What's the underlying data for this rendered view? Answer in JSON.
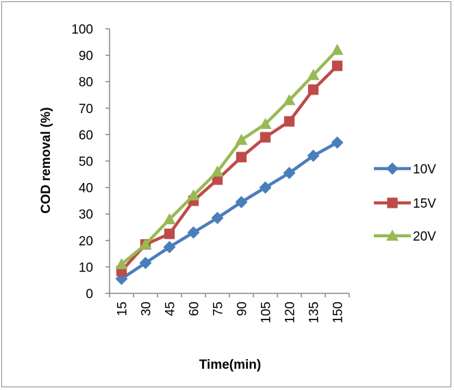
{
  "chart_data": {
    "type": "line",
    "title": "",
    "xlabel": "Time(min)",
    "ylabel": "COD removal (%)",
    "categories": [
      "15",
      "30",
      "45",
      "60",
      "75",
      "90",
      "105",
      "120",
      "135",
      "150"
    ],
    "ylim": [
      0,
      100
    ],
    "yticks": [
      "0",
      "10",
      "20",
      "30",
      "40",
      "50",
      "60",
      "70",
      "80",
      "90",
      "100"
    ],
    "grid": false,
    "legend_position": "right",
    "series": [
      {
        "name": "10V",
        "color": "#4a7ebb",
        "marker": "diamond",
        "values": [
          5.5,
          11.5,
          17.5,
          23,
          28.5,
          34.5,
          40,
          45.5,
          52,
          57
        ]
      },
      {
        "name": "15V",
        "color": "#be4b48",
        "marker": "square",
        "values": [
          8.5,
          18.5,
          22.5,
          35,
          43,
          51.5,
          59,
          65,
          77,
          86
        ]
      },
      {
        "name": "20V",
        "color": "#98b954",
        "marker": "triangle",
        "values": [
          11,
          18.5,
          28,
          37,
          46,
          58,
          64,
          73,
          82.5,
          92
        ]
      }
    ]
  }
}
